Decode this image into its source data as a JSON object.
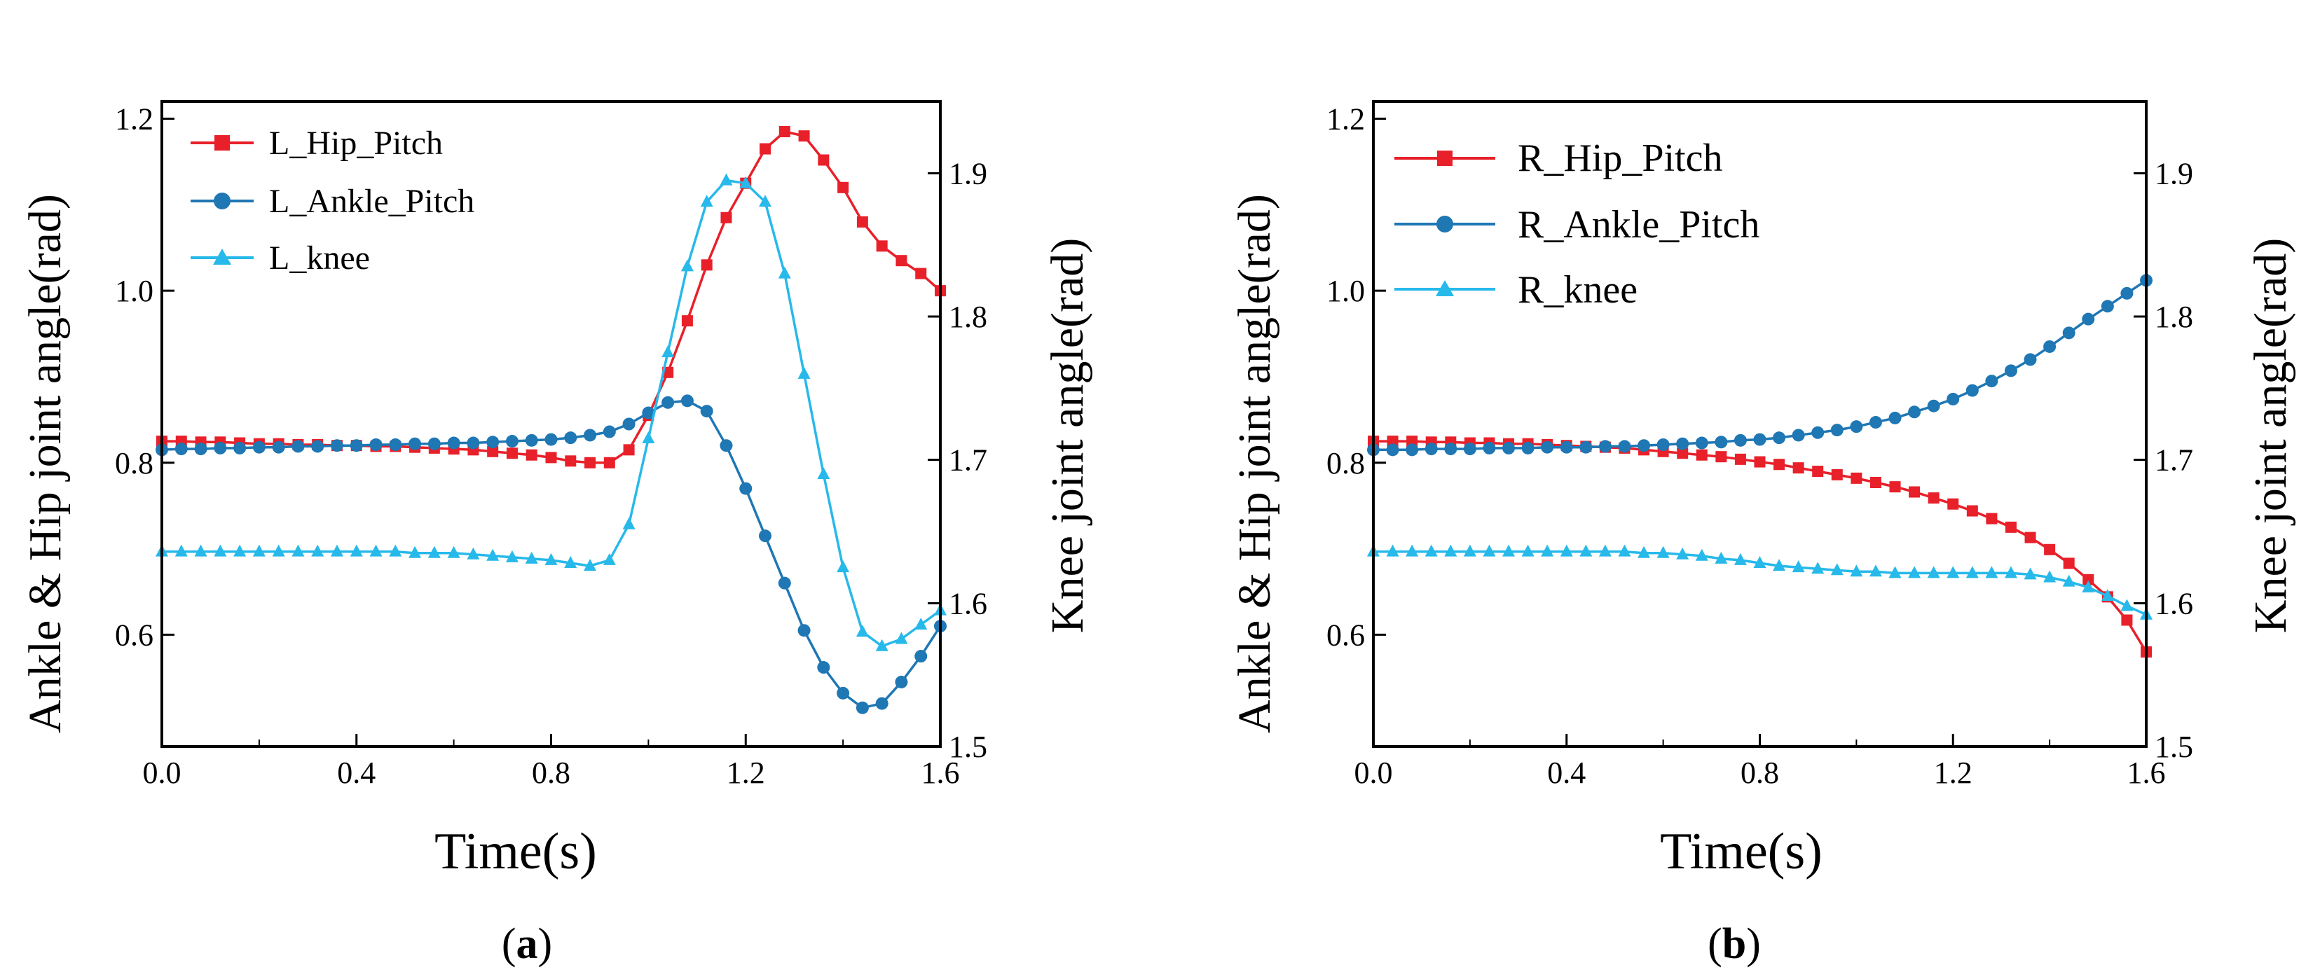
{
  "figure": {
    "panels": [
      "a",
      "b"
    ]
  },
  "chart_data": [
    {
      "type": "line",
      "panel_label": "(a)",
      "panel_letter": "a",
      "xlabel": "Time(s)",
      "ylabel": "Ankle & Hip joint angle(rad)",
      "y2label": "Knee joint angle(rad)",
      "xlim": [
        0,
        1.6
      ],
      "ylim": [
        0.47,
        1.22
      ],
      "y2lim": [
        1.5,
        1.95
      ],
      "xticks": [
        0.0,
        0.4,
        0.8,
        1.2,
        1.6
      ],
      "xtick_labels": [
        "0.0",
        "0.4",
        "0.8",
        "1.2",
        "1.6"
      ],
      "yticks": [
        0.6,
        0.8,
        1.0,
        1.2
      ],
      "ytick_labels": [
        "0.6",
        "0.8",
        "1.0",
        "1.2"
      ],
      "y2ticks": [
        1.5,
        1.6,
        1.7,
        1.8,
        1.9
      ],
      "y2tick_labels": [
        "1.5",
        "1.6",
        "1.7",
        "1.8",
        "1.9"
      ],
      "legend_position": "top-left",
      "series": [
        {
          "name": "L_Hip_Pitch",
          "axis": "left",
          "color": "#e8202a",
          "marker": "square",
          "x": [
            0,
            0.04,
            0.08,
            0.12,
            0.16,
            0.2,
            0.24,
            0.28,
            0.32,
            0.36,
            0.4,
            0.44,
            0.48,
            0.52,
            0.56,
            0.6,
            0.64,
            0.68,
            0.72,
            0.76,
            0.8,
            0.84,
            0.88,
            0.92,
            0.96,
            1.0,
            1.04,
            1.08,
            1.12,
            1.16,
            1.2,
            1.24,
            1.28,
            1.32,
            1.36,
            1.4,
            1.44,
            1.48,
            1.52,
            1.56,
            1.6
          ],
          "y": [
            0.825,
            0.825,
            0.824,
            0.824,
            0.823,
            0.822,
            0.822,
            0.821,
            0.821,
            0.82,
            0.82,
            0.819,
            0.819,
            0.818,
            0.817,
            0.816,
            0.815,
            0.813,
            0.811,
            0.809,
            0.806,
            0.802,
            0.8,
            0.8,
            0.815,
            0.855,
            0.905,
            0.965,
            1.03,
            1.085,
            1.125,
            1.165,
            1.185,
            1.18,
            1.152,
            1.12,
            1.08,
            1.052,
            1.035,
            1.02,
            1.0
          ]
        },
        {
          "name": "L_Ankle_Pitch",
          "axis": "left",
          "color": "#1f77b4",
          "marker": "circle",
          "x": [
            0,
            0.04,
            0.08,
            0.12,
            0.16,
            0.2,
            0.24,
            0.28,
            0.32,
            0.36,
            0.4,
            0.44,
            0.48,
            0.52,
            0.56,
            0.6,
            0.64,
            0.68,
            0.72,
            0.76,
            0.8,
            0.84,
            0.88,
            0.92,
            0.96,
            1.0,
            1.04,
            1.08,
            1.12,
            1.16,
            1.2,
            1.24,
            1.28,
            1.32,
            1.36,
            1.4,
            1.44,
            1.48,
            1.52,
            1.56,
            1.6
          ],
          "y": [
            0.815,
            0.816,
            0.816,
            0.817,
            0.817,
            0.818,
            0.818,
            0.819,
            0.819,
            0.82,
            0.82,
            0.821,
            0.821,
            0.822,
            0.822,
            0.823,
            0.823,
            0.824,
            0.825,
            0.826,
            0.827,
            0.829,
            0.832,
            0.836,
            0.845,
            0.858,
            0.87,
            0.872,
            0.86,
            0.82,
            0.77,
            0.715,
            0.66,
            0.605,
            0.562,
            0.532,
            0.515,
            0.52,
            0.545,
            0.575,
            0.61
          ]
        },
        {
          "name": "L_knee",
          "axis": "right",
          "color": "#27b9ea",
          "marker": "triangle",
          "x": [
            0,
            0.04,
            0.08,
            0.12,
            0.16,
            0.2,
            0.24,
            0.28,
            0.32,
            0.36,
            0.4,
            0.44,
            0.48,
            0.52,
            0.56,
            0.6,
            0.64,
            0.68,
            0.72,
            0.76,
            0.8,
            0.84,
            0.88,
            0.92,
            0.96,
            1.0,
            1.04,
            1.08,
            1.12,
            1.16,
            1.2,
            1.24,
            1.28,
            1.32,
            1.36,
            1.4,
            1.44,
            1.48,
            1.52,
            1.56,
            1.6
          ],
          "y": [
            1.636,
            1.636,
            1.636,
            1.636,
            1.636,
            1.636,
            1.636,
            1.636,
            1.636,
            1.636,
            1.636,
            1.636,
            1.636,
            1.635,
            1.635,
            1.635,
            1.634,
            1.633,
            1.632,
            1.631,
            1.63,
            1.628,
            1.626,
            1.63,
            1.655,
            1.715,
            1.775,
            1.835,
            1.88,
            1.895,
            1.893,
            1.88,
            1.83,
            1.76,
            1.69,
            1.625,
            1.58,
            1.57,
            1.575,
            1.585,
            1.595
          ]
        }
      ]
    },
    {
      "type": "line",
      "panel_label": "(b)",
      "panel_letter": "b",
      "xlabel": "Time(s)",
      "ylabel": "Ankle & Hip joint angle(rad)",
      "y2label": "Knee joint angle(rad)",
      "xlim": [
        0,
        1.6
      ],
      "ylim": [
        0.47,
        1.22
      ],
      "y2lim": [
        1.5,
        1.95
      ],
      "xticks": [
        0.0,
        0.4,
        0.8,
        1.2,
        1.6
      ],
      "xtick_labels": [
        "0.0",
        "0.4",
        "0.8",
        "1.2",
        "1.6"
      ],
      "yticks": [
        0.6,
        0.8,
        1.0,
        1.2
      ],
      "ytick_labels": [
        "0.6",
        "0.8",
        "1.0",
        "1.2"
      ],
      "y2ticks": [
        1.5,
        1.6,
        1.7,
        1.8,
        1.9
      ],
      "y2tick_labels": [
        "1.5",
        "1.6",
        "1.7",
        "1.8",
        "1.9"
      ],
      "legend_position": "top-left",
      "series": [
        {
          "name": "R_Hip_Pitch",
          "axis": "left",
          "color": "#e8202a",
          "marker": "square",
          "x": [
            0,
            0.04,
            0.08,
            0.12,
            0.16,
            0.2,
            0.24,
            0.28,
            0.32,
            0.36,
            0.4,
            0.44,
            0.48,
            0.52,
            0.56,
            0.6,
            0.64,
            0.68,
            0.72,
            0.76,
            0.8,
            0.84,
            0.88,
            0.92,
            0.96,
            1.0,
            1.04,
            1.08,
            1.12,
            1.16,
            1.2,
            1.24,
            1.28,
            1.32,
            1.36,
            1.4,
            1.44,
            1.48,
            1.52,
            1.56,
            1.6
          ],
          "y": [
            0.825,
            0.825,
            0.825,
            0.824,
            0.824,
            0.823,
            0.823,
            0.822,
            0.822,
            0.821,
            0.82,
            0.819,
            0.818,
            0.817,
            0.815,
            0.813,
            0.811,
            0.809,
            0.807,
            0.804,
            0.801,
            0.798,
            0.794,
            0.79,
            0.786,
            0.782,
            0.777,
            0.772,
            0.766,
            0.759,
            0.752,
            0.744,
            0.735,
            0.725,
            0.713,
            0.699,
            0.683,
            0.664,
            0.644,
            0.617,
            0.58
          ]
        },
        {
          "name": "R_Ankle_Pitch",
          "axis": "left",
          "color": "#1f77b4",
          "marker": "circle",
          "x": [
            0,
            0.04,
            0.08,
            0.12,
            0.16,
            0.2,
            0.24,
            0.28,
            0.32,
            0.36,
            0.4,
            0.44,
            0.48,
            0.52,
            0.56,
            0.6,
            0.64,
            0.68,
            0.72,
            0.76,
            0.8,
            0.84,
            0.88,
            0.92,
            0.96,
            1.0,
            1.04,
            1.08,
            1.12,
            1.16,
            1.2,
            1.24,
            1.28,
            1.32,
            1.36,
            1.4,
            1.44,
            1.48,
            1.52,
            1.56,
            1.6
          ],
          "y": [
            0.815,
            0.815,
            0.815,
            0.816,
            0.816,
            0.816,
            0.817,
            0.817,
            0.817,
            0.818,
            0.818,
            0.818,
            0.819,
            0.819,
            0.82,
            0.821,
            0.822,
            0.823,
            0.824,
            0.826,
            0.827,
            0.829,
            0.832,
            0.835,
            0.838,
            0.842,
            0.847,
            0.852,
            0.859,
            0.866,
            0.874,
            0.884,
            0.895,
            0.907,
            0.92,
            0.935,
            0.951,
            0.967,
            0.982,
            0.997,
            1.012
          ]
        },
        {
          "name": "R_knee",
          "axis": "right",
          "color": "#27b9ea",
          "marker": "triangle",
          "x": [
            0,
            0.04,
            0.08,
            0.12,
            0.16,
            0.2,
            0.24,
            0.28,
            0.32,
            0.36,
            0.4,
            0.44,
            0.48,
            0.52,
            0.56,
            0.6,
            0.64,
            0.68,
            0.72,
            0.76,
            0.8,
            0.84,
            0.88,
            0.92,
            0.96,
            1.0,
            1.04,
            1.08,
            1.12,
            1.16,
            1.2,
            1.24,
            1.28,
            1.32,
            1.36,
            1.4,
            1.44,
            1.48,
            1.52,
            1.56,
            1.6
          ],
          "y": [
            1.636,
            1.636,
            1.636,
            1.636,
            1.636,
            1.636,
            1.636,
            1.636,
            1.636,
            1.636,
            1.636,
            1.636,
            1.636,
            1.636,
            1.635,
            1.635,
            1.634,
            1.633,
            1.631,
            1.63,
            1.628,
            1.626,
            1.625,
            1.624,
            1.623,
            1.622,
            1.622,
            1.621,
            1.621,
            1.621,
            1.621,
            1.621,
            1.621,
            1.621,
            1.62,
            1.618,
            1.615,
            1.611,
            1.605,
            1.598,
            1.592
          ]
        }
      ]
    }
  ]
}
